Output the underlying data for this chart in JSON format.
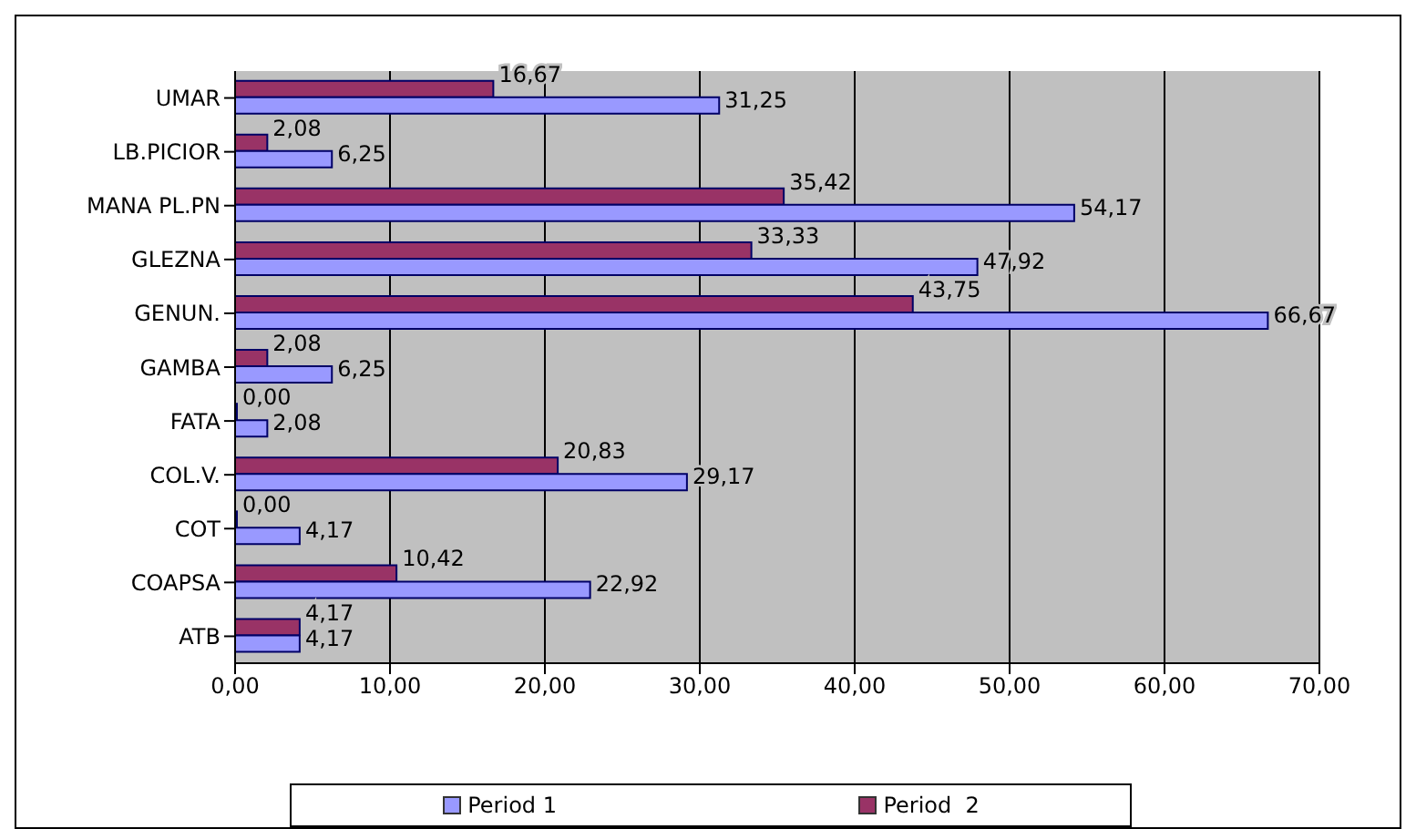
{
  "chart_data": {
    "type": "bar",
    "orientation": "horizontal",
    "categories": [
      "UMAR",
      "LB.PICIOR",
      "MANA PL.PN",
      "GLEZNA",
      "GENUN.",
      "GAMBA",
      "FATA",
      "COL.V.",
      "COT",
      "COAPSA",
      "ATB"
    ],
    "series": [
      {
        "name": "Period 1",
        "color": "#9999ff",
        "values": [
          31.25,
          6.25,
          54.17,
          47.92,
          66.67,
          6.25,
          2.08,
          29.17,
          4.17,
          22.92,
          4.17
        ],
        "value_labels": [
          "31,25",
          "6,25",
          "54,17",
          "47,92",
          "66,67",
          "6,25",
          "2,08",
          "29,17",
          "4,17",
          "22,92",
          "4,17"
        ]
      },
      {
        "name": "Period  2",
        "color": "#993366",
        "values": [
          16.67,
          2.08,
          35.42,
          33.33,
          43.75,
          2.08,
          0,
          20.83,
          0,
          10.42,
          4.17
        ],
        "value_labels": [
          "16,67",
          "2,08",
          "35,42",
          "33,33",
          "43,75",
          "2,08",
          "0,00",
          "20,83",
          "0,00",
          "10,42",
          "4,17"
        ]
      }
    ],
    "xlim": [
      0,
      70
    ],
    "xticks": [
      {
        "value": 0,
        "label": "0,00"
      },
      {
        "value": 10,
        "label": "10,00"
      },
      {
        "value": 20,
        "label": "20,00"
      },
      {
        "value": 30,
        "label": "30,00"
      },
      {
        "value": 40,
        "label": "40,00"
      },
      {
        "value": 50,
        "label": "50,00"
      },
      {
        "value": 60,
        "label": "60,00"
      },
      {
        "value": 70,
        "label": "70,00"
      }
    ],
    "grid": "x",
    "legend": "bottom"
  }
}
